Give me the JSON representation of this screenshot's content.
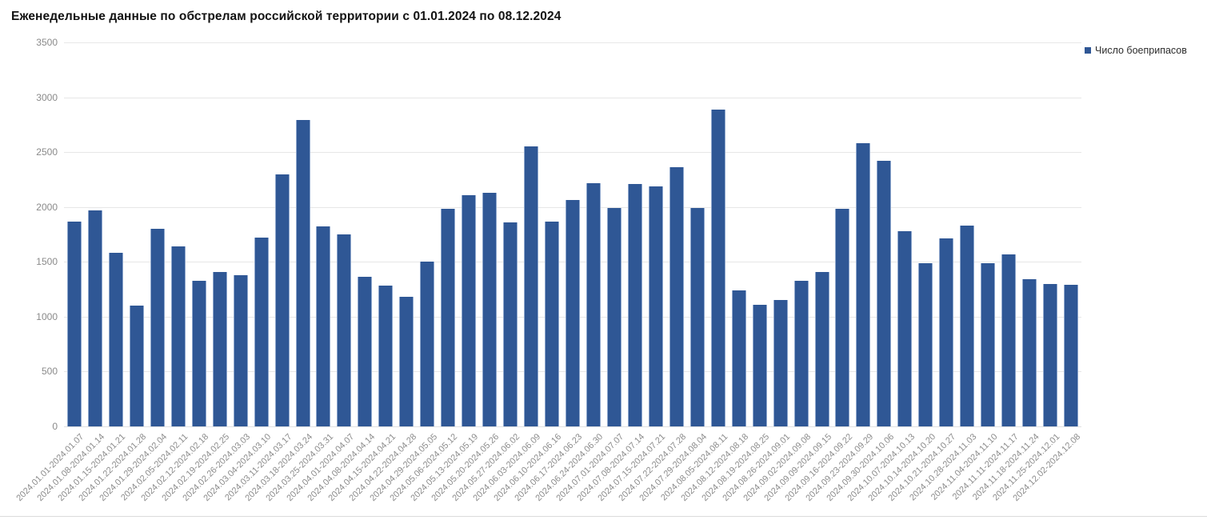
{
  "page": {
    "title": "Еженедельные данные по обстрелам российской территории с 01.01.2024 по 08.12.2024"
  },
  "legend": {
    "label": "Число боеприпасов"
  },
  "colors": {
    "bar": "#2f5795",
    "bar_edge": "#8ea7cd",
    "grid": "#e7e7e7",
    "axis_text": "#8a8a8a",
    "title_text": "#131313",
    "legend_text": "#2b2b2b",
    "divider": "#dcdcdc"
  },
  "chart_data": {
    "type": "bar",
    "title": "Еженедельные данные по обстрелам российской территории с 01.01.2024 по 08.12.2024",
    "legend": [
      "Число боеприпасов"
    ],
    "legend_position": "top-right",
    "grid": true,
    "xlabel": "",
    "ylabel": "",
    "ylim": [
      0,
      3500
    ],
    "yticks": [
      0,
      500,
      1000,
      1500,
      2000,
      2500,
      3000,
      3500
    ],
    "categories": [
      "2024.01.01-2024.01.07",
      "2024.01.08-2024.01.14",
      "2024.01.15-2024.01.21",
      "2024.01.22-2024.01.28",
      "2024.01.29-2024.02.04",
      "2024.02.05-2024.02.11",
      "2024.02.12-2024.02.18",
      "2024.02.19-2024.02.25",
      "2024.02.26-2024.03.03",
      "2024.03.04-2024.03.10",
      "2024.03.11-2024.03.17",
      "2024.03.18-2024.03.24",
      "2024.03.25-2024.03.31",
      "2024.04.01-2024.04.07",
      "2024.04.08-2024.04.14",
      "2024.04.15-2024.04.21",
      "2024.04.22-2024.04.28",
      "2024.04.29-2024.05.05",
      "2024.05.06-2024.05.12",
      "2024.05.13-2024.05.19",
      "2024.05.20-2024.05.26",
      "2024.05.27-2024.06.02",
      "2024.06.03-2024.06.09",
      "2024.06.10-2024.06.16",
      "2024.06.17-2024.06.23",
      "2024.06.24-2024.06.30",
      "2024.07.01-2024.07.07",
      "2024.07.08-2024.07.14",
      "2024.07.15-2024.07.21",
      "2024.07.22-2024.07.28",
      "2024.07.29-2024.08.04",
      "2024.08.05-2024.08.11",
      "2024.08.12-2024.08.18",
      "2024.08.19-2024.08.25",
      "2024.08.26-2024.09.01",
      "2024.09.02-2024.09.08",
      "2024.09.09-2024.09.15",
      "2024.09.16-2024.09.22",
      "2024.09.23-2024.09.29",
      "2024.09.30-2024.10.06",
      "2024.10.07-2024.10.13",
      "2024.10.14-2024.10.20",
      "2024.10.21-2024.10.27",
      "2024.10.28-2024.11.03",
      "2024.11.04-2024.11.10",
      "2024.11.11-2024.11.17",
      "2024.11.18-2024.11.24",
      "2024.11.25-2024.12.01",
      "2024.12.02-2024.12.08"
    ],
    "series": [
      {
        "name": "Число боеприпасов",
        "values": [
          1870,
          1970,
          1580,
          1100,
          1800,
          1640,
          1330,
          1410,
          1380,
          1720,
          2300,
          2790,
          1820,
          1750,
          1360,
          1280,
          1180,
          1500,
          1980,
          2110,
          2130,
          1860,
          2550,
          1870,
          2060,
          2220,
          1990,
          2210,
          2190,
          2360,
          1990,
          2890,
          1240,
          1110,
          1150,
          1330,
          1410,
          1980,
          2580,
          2420,
          1780,
          1490,
          1710,
          1830,
          1490,
          1570,
          1340,
          1300,
          1290
        ]
      }
    ]
  }
}
